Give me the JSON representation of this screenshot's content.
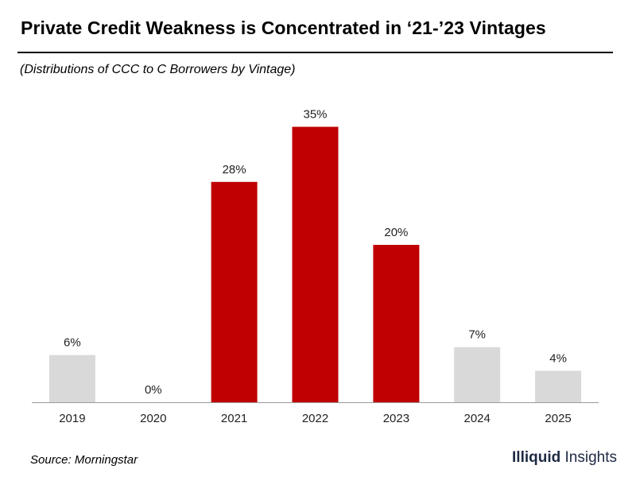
{
  "header": {
    "title": "Private Credit Weakness is Concentrated in ‘21-’23 Vintages",
    "subtitle": "(Distributions of CCC to C Borrowers by Vintage)"
  },
  "footer": {
    "source": "Source: Morningstar",
    "brand_bold": "Illiquid",
    "brand_light": " Insights"
  },
  "colors": {
    "highlight": "#c00000",
    "muted": "#d9d9d9",
    "axis": "#9a9a9a",
    "brand": "#1f2a44"
  },
  "chart_data": {
    "type": "bar",
    "title": "Private Credit Weakness is Concentrated in ‘21-’23 Vintages",
    "subtitle": "(Distributions of CCC to C Borrowers by Vintage)",
    "xlabel": "",
    "ylabel": "",
    "categories": [
      "2019",
      "2020",
      "2021",
      "2022",
      "2023",
      "2024",
      "2025"
    ],
    "values": [
      6,
      0,
      28,
      35,
      20,
      7,
      4
    ],
    "labels": [
      "6%",
      "0%",
      "28%",
      "35%",
      "20%",
      "7%",
      "4%"
    ],
    "highlighted": [
      false,
      false,
      true,
      true,
      true,
      false,
      false
    ],
    "ylim": [
      0,
      35
    ],
    "grid": false,
    "legend": "none"
  }
}
